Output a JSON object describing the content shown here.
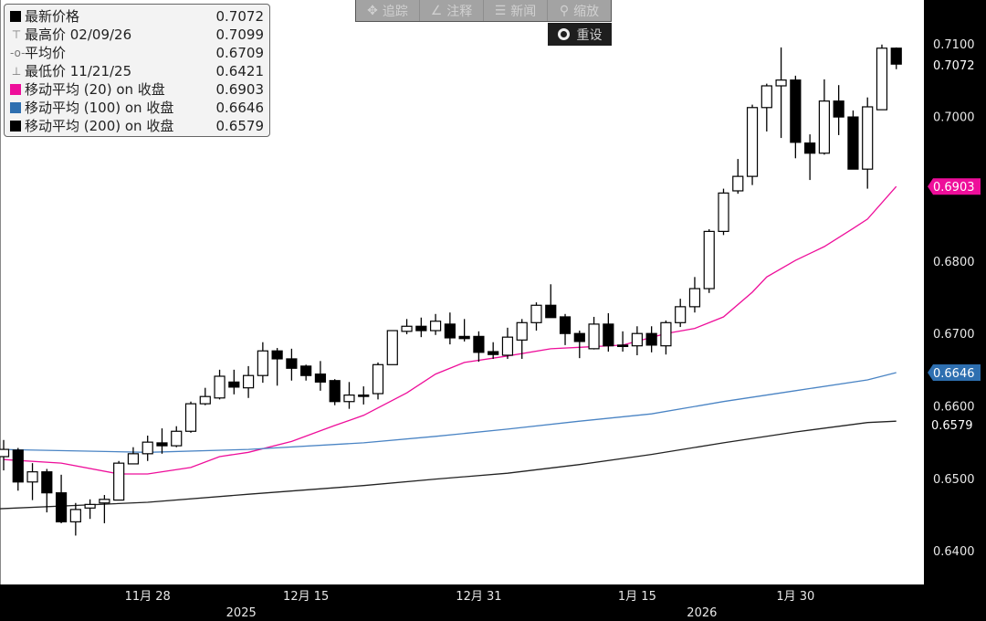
{
  "toolbar": {
    "items": [
      {
        "label": "追踪",
        "icon": "crosshair-icon"
      },
      {
        "label": "注释",
        "icon": "pencil-icon"
      },
      {
        "label": "新闻",
        "icon": "news-icon"
      },
      {
        "label": "缩放",
        "icon": "magnifier-icon"
      }
    ],
    "reset_label": "重设"
  },
  "legend": {
    "rows": [
      {
        "label": "最新价格",
        "value": "0.7072",
        "swatch": "#000000"
      },
      {
        "label": "最高价 02/09/26",
        "value": "0.7099",
        "glyph": "⊤"
      },
      {
        "label": "平均价",
        "value": "0.6709",
        "glyph": "-o-"
      },
      {
        "label": "最低价 11/21/25",
        "value": "0.6421",
        "glyph": "⊥"
      },
      {
        "label": "移动平均 (20)  on 收盘",
        "value": "0.6903",
        "swatch": "#ee0e9a"
      },
      {
        "label": "移动平均 (100)  on 收盘",
        "value": "0.6646",
        "swatch": "#2e6fb0"
      },
      {
        "label": "移动平均 (200)  on 收盘",
        "value": "0.6579",
        "swatch": "#000000"
      }
    ]
  },
  "chart_data": {
    "type": "candlestick",
    "ylim": [
      0.635,
      0.716
    ],
    "y_ticks": [
      "0.7100",
      "0.7000",
      "0.6800",
      "0.6700",
      "0.6600",
      "0.6500",
      "0.6400"
    ],
    "y_tick_values": [
      0.71,
      0.7,
      0.68,
      0.67,
      0.66,
      0.65,
      0.64
    ],
    "last_price_label": "0.7072",
    "last_price": 0.7072,
    "ma200_label": "0.6579",
    "ma200_value": 0.6579,
    "markers": [
      {
        "label": "0.6903",
        "value": 0.6903,
        "color": "#ee0e9a"
      },
      {
        "label": "0.6646",
        "value": 0.6646,
        "color": "#2e6fb0"
      }
    ],
    "x_ticks": [
      {
        "label": "11月 28",
        "index": 10
      },
      {
        "label": "12月 15",
        "index": 21
      },
      {
        "label": "12月 31",
        "index": 33
      },
      {
        "label": "1月 15",
        "index": 44
      },
      {
        "label": "1月 30",
        "index": 55
      }
    ],
    "year_labels": [
      {
        "label": "2025",
        "index": 16.5
      },
      {
        "label": "2026",
        "index": 48.5
      }
    ],
    "ohlc": [
      [
        0.653,
        0.6553,
        0.6511,
        0.654
      ],
      [
        0.6539,
        0.6542,
        0.6483,
        0.6495
      ],
      [
        0.6495,
        0.6521,
        0.647,
        0.6509
      ],
      [
        0.6509,
        0.6513,
        0.6453,
        0.648
      ],
      [
        0.648,
        0.6505,
        0.6438,
        0.644
      ],
      [
        0.644,
        0.6466,
        0.6421,
        0.6457
      ],
      [
        0.6459,
        0.6471,
        0.6444,
        0.6464
      ],
      [
        0.6466,
        0.6477,
        0.6438,
        0.6471
      ],
      [
        0.647,
        0.6524,
        0.647,
        0.6521
      ],
      [
        0.652,
        0.6543,
        0.652,
        0.6534
      ],
      [
        0.6534,
        0.6559,
        0.6524,
        0.655
      ],
      [
        0.6549,
        0.6569,
        0.6534,
        0.6545
      ],
      [
        0.6545,
        0.6572,
        0.6543,
        0.6565
      ],
      [
        0.6565,
        0.6606,
        0.6563,
        0.6603
      ],
      [
        0.6603,
        0.6625,
        0.6601,
        0.6613
      ],
      [
        0.6611,
        0.665,
        0.6609,
        0.6641
      ],
      [
        0.6633,
        0.665,
        0.6616,
        0.6626
      ],
      [
        0.6625,
        0.6655,
        0.6611,
        0.6642
      ],
      [
        0.6642,
        0.6688,
        0.6632,
        0.6676
      ],
      [
        0.6676,
        0.668,
        0.6628,
        0.6665
      ],
      [
        0.6665,
        0.6679,
        0.6635,
        0.6652
      ],
      [
        0.6655,
        0.6657,
        0.6635,
        0.6642
      ],
      [
        0.6644,
        0.6662,
        0.6621,
        0.6633
      ],
      [
        0.6635,
        0.6637,
        0.6601,
        0.6606
      ],
      [
        0.6606,
        0.6633,
        0.6596,
        0.6615
      ],
      [
        0.6615,
        0.6627,
        0.6602,
        0.6614
      ],
      [
        0.6617,
        0.666,
        0.6609,
        0.6657
      ],
      [
        0.6657,
        0.6704,
        0.6657,
        0.6704
      ],
      [
        0.6703,
        0.672,
        0.6699,
        0.671
      ],
      [
        0.671,
        0.6722,
        0.6695,
        0.6704
      ],
      [
        0.6704,
        0.6727,
        0.6698,
        0.6717
      ],
      [
        0.6713,
        0.6729,
        0.6685,
        0.6694
      ],
      [
        0.6696,
        0.672,
        0.6689,
        0.6693
      ],
      [
        0.6696,
        0.6703,
        0.6661,
        0.6674
      ],
      [
        0.6675,
        0.6688,
        0.6665,
        0.6671
      ],
      [
        0.667,
        0.6708,
        0.6665,
        0.6695
      ],
      [
        0.6691,
        0.672,
        0.6665,
        0.6715
      ],
      [
        0.6715,
        0.6743,
        0.6704,
        0.6739
      ],
      [
        0.6739,
        0.6768,
        0.6722,
        0.6722
      ],
      [
        0.6723,
        0.6727,
        0.6684,
        0.67
      ],
      [
        0.67,
        0.6704,
        0.6666,
        0.6689
      ],
      [
        0.6679,
        0.6723,
        0.6678,
        0.6713
      ],
      [
        0.6713,
        0.6728,
        0.6675,
        0.6683
      ],
      [
        0.6684,
        0.6703,
        0.6675,
        0.6683
      ],
      [
        0.6683,
        0.671,
        0.667,
        0.67
      ],
      [
        0.67,
        0.671,
        0.6674,
        0.6684
      ],
      [
        0.6683,
        0.6718,
        0.6671,
        0.6715
      ],
      [
        0.6715,
        0.6748,
        0.6709,
        0.6737
      ],
      [
        0.6737,
        0.6778,
        0.6729,
        0.6762
      ],
      [
        0.6762,
        0.6844,
        0.6756,
        0.6841
      ],
      [
        0.6841,
        0.69,
        0.6836,
        0.6894
      ],
      [
        0.6897,
        0.6941,
        0.6893,
        0.6917
      ],
      [
        0.6917,
        0.7016,
        0.6905,
        0.7012
      ],
      [
        0.7012,
        0.7045,
        0.6979,
        0.7042
      ],
      [
        0.7042,
        0.7095,
        0.697,
        0.705
      ],
      [
        0.705,
        0.7056,
        0.6942,
        0.6964
      ],
      [
        0.6963,
        0.6975,
        0.6912,
        0.6949
      ],
      [
        0.6949,
        0.7051,
        0.6947,
        0.7021
      ],
      [
        0.7021,
        0.7043,
        0.6974,
        0.6999
      ],
      [
        0.6999,
        0.7008,
        0.6927,
        0.6927
      ],
      [
        0.6927,
        0.7026,
        0.69,
        0.7013
      ],
      [
        0.7009,
        0.7099,
        0.7009,
        0.7094
      ],
      [
        0.7094,
        0.7095,
        0.7065,
        0.7072
      ]
    ],
    "series": [
      {
        "name": "移动平均 (20)",
        "color": "#ee0e9a",
        "points": [
          [
            0,
            0.6526
          ],
          [
            4,
            0.6521
          ],
          [
            8,
            0.6506
          ],
          [
            10,
            0.6506
          ],
          [
            13,
            0.6515
          ],
          [
            15,
            0.653
          ],
          [
            17,
            0.6536
          ],
          [
            20,
            0.6551
          ],
          [
            23,
            0.6573
          ],
          [
            25,
            0.6587
          ],
          [
            28,
            0.6618
          ],
          [
            30,
            0.6644
          ],
          [
            32,
            0.666
          ],
          [
            35,
            0.6669
          ],
          [
            38,
            0.6679
          ],
          [
            40,
            0.6681
          ],
          [
            43,
            0.6684
          ],
          [
            46,
            0.67
          ],
          [
            48,
            0.6707
          ],
          [
            50,
            0.6723
          ],
          [
            52,
            0.6757
          ],
          [
            53,
            0.6778
          ],
          [
            55,
            0.6801
          ],
          [
            57,
            0.682
          ],
          [
            59,
            0.6845
          ],
          [
            60,
            0.6858
          ],
          [
            62,
            0.6903
          ]
        ]
      },
      {
        "name": "移动平均 (100)",
        "color": "#4a84c4",
        "points": [
          [
            -0.3,
            0.654
          ],
          [
            10,
            0.6536
          ],
          [
            17,
            0.654
          ],
          [
            25,
            0.6549
          ],
          [
            30,
            0.6558
          ],
          [
            35,
            0.6568
          ],
          [
            40,
            0.6579
          ],
          [
            45,
            0.6589
          ],
          [
            50,
            0.6606
          ],
          [
            55,
            0.6621
          ],
          [
            60,
            0.6636
          ],
          [
            62,
            0.6646
          ]
        ]
      },
      {
        "name": "移动平均 (200)",
        "color": "#222222",
        "points": [
          [
            -0.3,
            0.6458
          ],
          [
            10,
            0.6467
          ],
          [
            17,
            0.6478
          ],
          [
            25,
            0.649
          ],
          [
            30,
            0.6499
          ],
          [
            35,
            0.6507
          ],
          [
            40,
            0.6519
          ],
          [
            45,
            0.6533
          ],
          [
            50,
            0.6549
          ],
          [
            55,
            0.6564
          ],
          [
            60,
            0.6577
          ],
          [
            62,
            0.6579
          ]
        ]
      }
    ]
  }
}
